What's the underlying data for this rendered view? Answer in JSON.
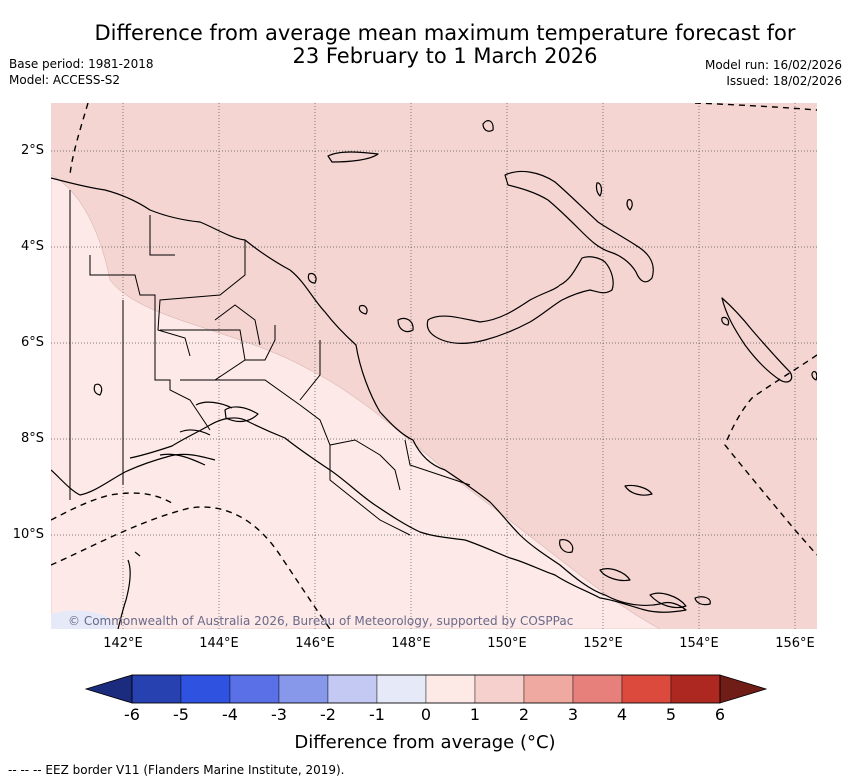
{
  "header": {
    "title_line1": "Difference from average mean maximum temperature forecast for",
    "title_line2": "23 February to 1 March 2026",
    "base_period": "Base period: 1981-2018",
    "model": "Model: ACCESS-S2",
    "model_run": "Model run: 16/02/2026",
    "issued": "Issued: 18/02/2026"
  },
  "map": {
    "lat_labels": [
      "2°S",
      "4°S",
      "6°S",
      "8°S",
      "10°S"
    ],
    "lon_labels": [
      "142°E",
      "144°E",
      "146°E",
      "148°E",
      "150°E",
      "152°E",
      "154°E",
      "156°E"
    ],
    "copyright": "© Commonwealth of Australia 2026, Bureau of Meteorology, supported by COSPPac",
    "colors": {
      "anomaly_1_2": "#f5d5d2",
      "anomaly_0_1": "#fde9e7",
      "anomaly_neg1_0": "#e6eaf8"
    }
  },
  "colorbar": {
    "ticks": [
      "-6",
      "-5",
      "-4",
      "-3",
      "-2",
      "-1",
      "0",
      "1",
      "2",
      "3",
      "4",
      "5",
      "6"
    ],
    "colors": [
      "#2741b0",
      "#2f52e0",
      "#5a70e6",
      "#8797ea",
      "#c3c9f2",
      "#e6eaf8",
      "#fdeae7",
      "#f5d0cc",
      "#f0a9a1",
      "#e7807a",
      "#dc4a3e",
      "#ad2820"
    ],
    "under_color": "#1b2c7e",
    "over_color": "#701d18",
    "label": "Difference from average (°C)"
  },
  "footer": {
    "legend_text": "--  --  -- EEZ border V11 (Flanders Marine Institute, 2019)."
  }
}
